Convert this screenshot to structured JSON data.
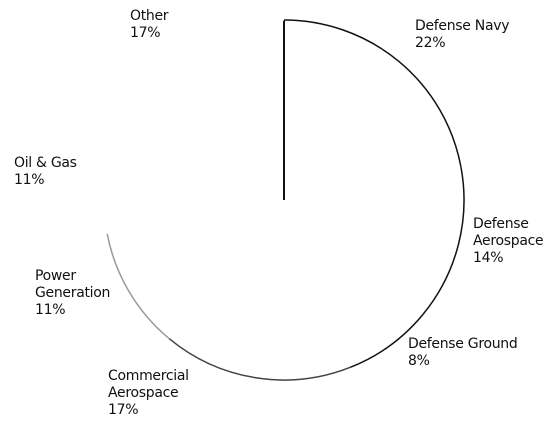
{
  "chart_data": {
    "type": "pie",
    "categories": [
      "Defense Navy",
      "Defense Aerospace",
      "Defense Ground",
      "Commercial Aerospace",
      "Power Generation",
      "Oil & Gas",
      "Other"
    ],
    "values": [
      22,
      14,
      8,
      17,
      11,
      11,
      17
    ],
    "value_labels": [
      "22%",
      "14%",
      "8%",
      "17%",
      "11%",
      "11%",
      "17%"
    ],
    "colors": [
      "#111111",
      "#111111",
      "#111111",
      "#444444",
      "#999999",
      "#ffffff",
      "#ffffff"
    ]
  }
}
